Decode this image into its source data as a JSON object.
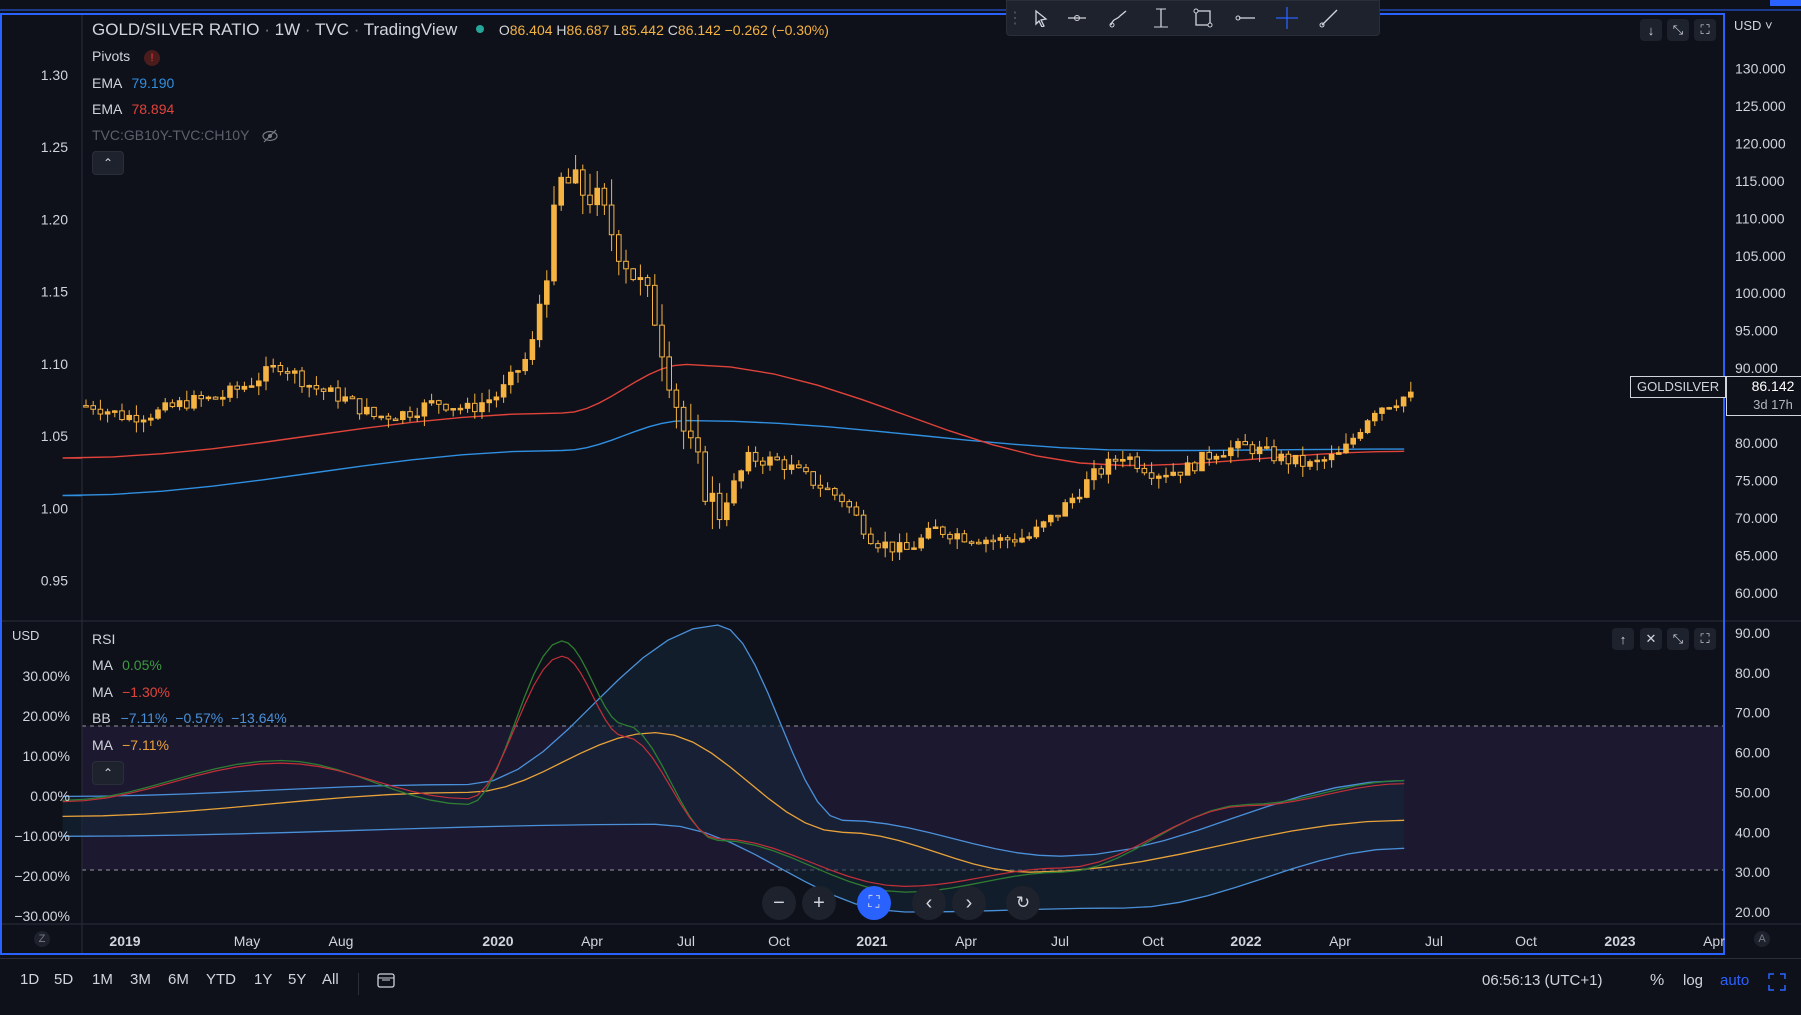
{
  "header": {
    "symbol": "GOLD/SILVER RATIO",
    "interval": "1W",
    "source": "TVC",
    "platform": "TradingView",
    "ohlc": {
      "o_label": "O",
      "o": "86.404",
      "h_label": "H",
      "h": "86.687",
      "l_label": "L",
      "l": "85.442",
      "c_label": "C",
      "c": "86.142",
      "change": "−0.262 (−0.30%)"
    }
  },
  "main_legend": {
    "pivots": "Pivots",
    "ema1_name": "EMA",
    "ema1_value": "79.190",
    "ema2_name": "EMA",
    "ema2_value": "78.894",
    "overlay": "TVC:GB10Y-TVC:CH10Y"
  },
  "rsi_legend": {
    "rsi": "RSI",
    "ma1_name": "MA",
    "ma1_value": "0.05%",
    "ma2_name": "MA",
    "ma2_value": "−1.30%",
    "bb_name": "BB",
    "bb_v1": "−7.11%",
    "bb_v2": "−0.57%",
    "bb_v3": "−13.64%",
    "ma3_name": "MA",
    "ma3_value": "−7.11%"
  },
  "axes": {
    "currency": "USD",
    "currency_dropdown": "USD ˅",
    "left_main_ticks": [
      "1.30",
      "1.25",
      "1.20",
      "1.15",
      "1.10",
      "1.05",
      "1.00",
      "0.95"
    ],
    "right_main_ticks": [
      "130.000",
      "125.000",
      "120.000",
      "115.000",
      "110.000",
      "105.000",
      "100.000",
      "95.000",
      "90.000",
      "85.000",
      "80.000",
      "75.000",
      "70.000",
      "65.000",
      "60.000"
    ],
    "left_rsi_ticks": [
      "30.00%",
      "20.00%",
      "10.00%",
      "0.00%",
      "−10.00%",
      "−20.00%",
      "−30.00%"
    ],
    "right_rsi_ticks": [
      "90.00",
      "80.00",
      "70.00",
      "60.00",
      "50.00",
      "40.00",
      "30.00",
      "20.00"
    ],
    "time_ticks": [
      {
        "t": "2019",
        "bold": true,
        "x": 125
      },
      {
        "t": "May",
        "bold": false,
        "x": 247
      },
      {
        "t": "Aug",
        "bold": false,
        "x": 341
      },
      {
        "t": "2020",
        "bold": true,
        "x": 498
      },
      {
        "t": "Apr",
        "bold": false,
        "x": 592
      },
      {
        "t": "Jul",
        "bold": false,
        "x": 686
      },
      {
        "t": "Oct",
        "bold": false,
        "x": 779
      },
      {
        "t": "2021",
        "bold": true,
        "x": 872
      },
      {
        "t": "Apr",
        "bold": false,
        "x": 966
      },
      {
        "t": "Jul",
        "bold": false,
        "x": 1060
      },
      {
        "t": "Oct",
        "bold": false,
        "x": 1153
      },
      {
        "t": "2022",
        "bold": true,
        "x": 1246
      },
      {
        "t": "Apr",
        "bold": false,
        "x": 1340
      },
      {
        "t": "Jul",
        "bold": false,
        "x": 1434
      },
      {
        "t": "Oct",
        "bold": false,
        "x": 1526
      },
      {
        "t": "2023",
        "bold": true,
        "x": 1620
      },
      {
        "t": "Apr",
        "bold": false,
        "x": 1714
      }
    ]
  },
  "price_label": {
    "symbol": "GOLDSILVER",
    "value": "86.142",
    "countdown": "3d 17h"
  },
  "bottom": {
    "ranges": [
      "1D",
      "5D",
      "1M",
      "3M",
      "6M",
      "YTD",
      "1Y",
      "5Y",
      "All"
    ],
    "clock": "06:56:13 (UTC+1)",
    "pct": "%",
    "log": "log",
    "auto": "auto"
  },
  "colors": {
    "candle": "#f5b342",
    "ema_blue": "#2f8fe0",
    "ema_red": "#e0433a",
    "rsi_green": "#2e7d32",
    "bb_blue": "#4a90d9",
    "ma_orange": "#e8a23a",
    "bg": "#0f111a"
  },
  "chart_data": [
    {
      "type": "candlestick",
      "title": "GOLD/SILVER RATIO · 1W · TVC",
      "yright_range": [
        57,
        133
      ],
      "yleft_range": [
        0.92,
        1.32
      ],
      "x_range": [
        "2018-11",
        "2023-04"
      ],
      "closes_approx": [
        {
          "x": "2018-12",
          "c": 85.0
        },
        {
          "x": "2019-01",
          "c": 83.5
        },
        {
          "x": "2019-02",
          "c": 84.0
        },
        {
          "x": "2019-03",
          "c": 85.5
        },
        {
          "x": "2019-04",
          "c": 86.0
        },
        {
          "x": "2019-05",
          "c": 88.0
        },
        {
          "x": "2019-06",
          "c": 90.5
        },
        {
          "x": "2019-07",
          "c": 87.5
        },
        {
          "x": "2019-08",
          "c": 86.0
        },
        {
          "x": "2019-09",
          "c": 83.5
        },
        {
          "x": "2019-10",
          "c": 84.0
        },
        {
          "x": "2019-11",
          "c": 85.5
        },
        {
          "x": "2019-12",
          "c": 84.5
        },
        {
          "x": "2020-01",
          "c": 86.5
        },
        {
          "x": "2020-02",
          "c": 92.0
        },
        {
          "x": "2020-03",
          "c": 115.0
        },
        {
          "x": "2020-04",
          "c": 113.0
        },
        {
          "x": "2020-05",
          "c": 105.0
        },
        {
          "x": "2020-06",
          "c": 97.0
        },
        {
          "x": "2020-07",
          "c": 80.0
        },
        {
          "x": "2020-08",
          "c": 70.5
        },
        {
          "x": "2020-09",
          "c": 78.0
        },
        {
          "x": "2020-10",
          "c": 77.5
        },
        {
          "x": "2020-11",
          "c": 75.0
        },
        {
          "x": "2020-12",
          "c": 72.5
        },
        {
          "x": "2021-01",
          "c": 67.0
        },
        {
          "x": "2021-02",
          "c": 65.5
        },
        {
          "x": "2021-03",
          "c": 68.5
        },
        {
          "x": "2021-04",
          "c": 67.5
        },
        {
          "x": "2021-05",
          "c": 67.0
        },
        {
          "x": "2021-06",
          "c": 67.5
        },
        {
          "x": "2021-07",
          "c": 71.0
        },
        {
          "x": "2021-08",
          "c": 75.5
        },
        {
          "x": "2021-09",
          "c": 78.5
        },
        {
          "x": "2021-10",
          "c": 76.0
        },
        {
          "x": "2021-11",
          "c": 76.5
        },
        {
          "x": "2021-12",
          "c": 79.0
        },
        {
          "x": "2022-01",
          "c": 79.5
        },
        {
          "x": "2022-02",
          "c": 78.0
        },
        {
          "x": "2022-03",
          "c": 77.0
        },
        {
          "x": "2022-04",
          "c": 78.5
        },
        {
          "x": "2022-05",
          "c": 84.5
        },
        {
          "x": "2022-06",
          "c": 86.142
        }
      ],
      "ema_blue_approx": [
        {
          "x": "2018-11",
          "v": 73.0
        },
        {
          "x": "2020-03",
          "v": 79.0
        },
        {
          "x": "2020-07",
          "v": 83.0
        },
        {
          "x": "2021-10",
          "v": 79.0
        },
        {
          "x": "2022-06",
          "v": 79.19
        }
      ],
      "ema_red_approx": [
        {
          "x": "2018-11",
          "v": 78.0
        },
        {
          "x": "2020-03",
          "v": 84.0
        },
        {
          "x": "2020-07",
          "v": 90.5
        },
        {
          "x": "2021-09",
          "v": 77.0
        },
        {
          "x": "2022-06",
          "v": 78.894
        }
      ]
    },
    {
      "type": "line",
      "title": "RSI",
      "yright_range": [
        17,
        93
      ],
      "bands": [
        30,
        70
      ],
      "rsi_green_approx": [
        {
          "x": "2018-11",
          "v": 48
        },
        {
          "x": "2019-06",
          "v": 58
        },
        {
          "x": "2019-12",
          "v": 47
        },
        {
          "x": "2020-03",
          "v": 88
        },
        {
          "x": "2020-05",
          "v": 67
        },
        {
          "x": "2020-08",
          "v": 38
        },
        {
          "x": "2021-02",
          "v": 25
        },
        {
          "x": "2021-07",
          "v": 30
        },
        {
          "x": "2022-01",
          "v": 47
        },
        {
          "x": "2022-06",
          "v": 53
        }
      ],
      "ma_orange_approx": [
        {
          "x": "2018-11",
          "v": 44
        },
        {
          "x": "2019-12",
          "v": 50
        },
        {
          "x": "2020-06",
          "v": 65
        },
        {
          "x": "2020-12",
          "v": 40
        },
        {
          "x": "2021-06",
          "v": 30
        },
        {
          "x": "2022-06",
          "v": 43
        }
      ],
      "bb_upper_approx": [
        {
          "x": "2018-11",
          "v": 49
        },
        {
          "x": "2019-12",
          "v": 52
        },
        {
          "x": "2020-08",
          "v": 92
        },
        {
          "x": "2020-12",
          "v": 43
        },
        {
          "x": "2021-07",
          "v": 34
        },
        {
          "x": "2022-06",
          "v": 53
        }
      ],
      "bb_lower_approx": [
        {
          "x": "2018-11",
          "v": 39
        },
        {
          "x": "2020-06",
          "v": 42
        },
        {
          "x": "2021-02",
          "v": 20
        },
        {
          "x": "2021-09",
          "v": 21
        },
        {
          "x": "2022-06",
          "v": 36
        }
      ]
    }
  ]
}
